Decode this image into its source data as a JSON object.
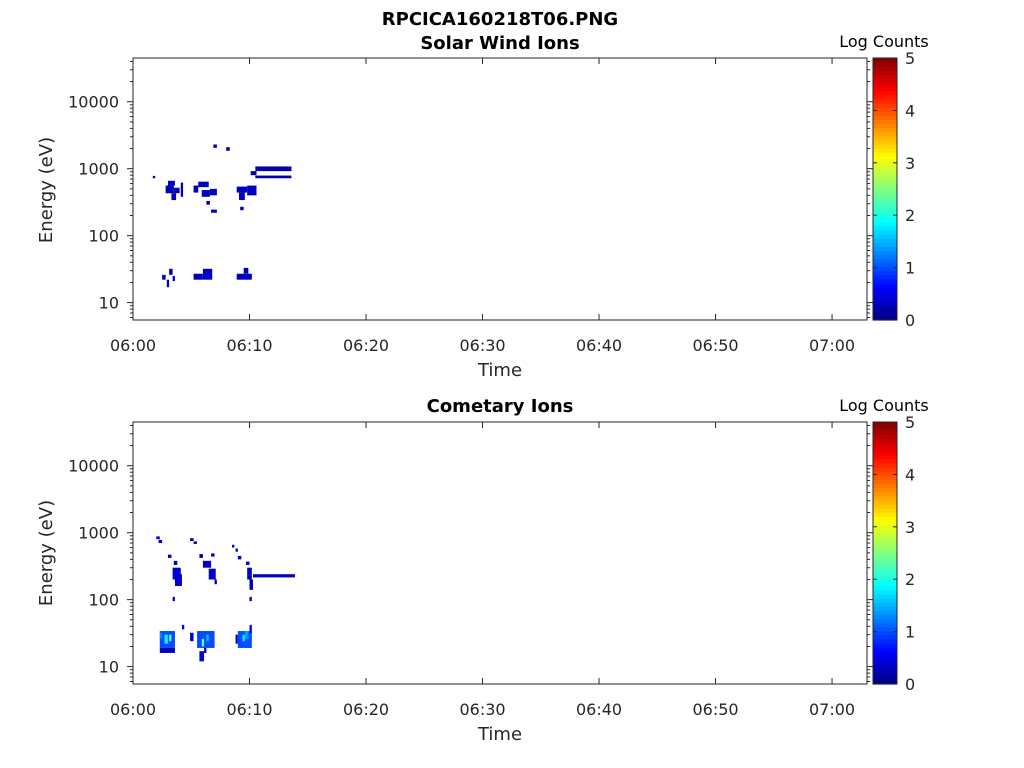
{
  "figure": {
    "title": "RPCICA160218T06.PNG"
  },
  "colorbar": {
    "label": "Log Counts",
    "range": [
      0,
      5
    ],
    "ticks": [
      0,
      1,
      2,
      3,
      4,
      5
    ],
    "colormap": "jet"
  },
  "chart_data": [
    {
      "type": "heatmap",
      "title": "Solar Wind Ions",
      "xlabel": "Time",
      "ylabel": "Energy (eV)",
      "y_scale": "log",
      "ylim": [
        5.5,
        45000
      ],
      "xlim": [
        "06:00:00",
        "07:03:00"
      ],
      "x_ticks": [
        "06:00",
        "06:10",
        "06:20",
        "06:30",
        "06:40",
        "06:50",
        "07:00"
      ],
      "y_ticks": [
        10,
        100,
        1000,
        10000
      ],
      "y_tick_labels": [
        "10",
        "100",
        "1000",
        "10000"
      ],
      "cells": [
        {
          "t0": "06:01:42",
          "t1": "06:01:54",
          "e": [
            720,
            780
          ],
          "v": 0.2
        },
        {
          "t0": "06:02:48",
          "t1": "06:03:30",
          "e": [
            430,
            560
          ],
          "v": 0.3
        },
        {
          "t0": "06:03:00",
          "t1": "06:03:36",
          "e": [
            560,
            660
          ],
          "v": 0.3
        },
        {
          "t0": "06:03:18",
          "t1": "06:03:42",
          "e": [
            340,
            430
          ],
          "v": 0.3
        },
        {
          "t0": "06:03:30",
          "t1": "06:04:00",
          "e": [
            430,
            520
          ],
          "v": 0.3
        },
        {
          "t0": "06:04:06",
          "t1": "06:04:18",
          "e": [
            380,
            620
          ],
          "v": 0.3
        },
        {
          "t0": "06:02:30",
          "t1": "06:02:48",
          "e": [
            22,
            26
          ],
          "v": 0.3
        },
        {
          "t0": "06:02:54",
          "t1": "06:03:06",
          "e": [
            17,
            22
          ],
          "v": 0.3
        },
        {
          "t0": "06:03:06",
          "t1": "06:03:24",
          "e": [
            26,
            32
          ],
          "v": 0.3
        },
        {
          "t0": "06:03:24",
          "t1": "06:03:36",
          "e": [
            21,
            25
          ],
          "v": 0.3
        },
        {
          "t0": "06:05:12",
          "t1": "06:05:36",
          "e": [
            440,
            560
          ],
          "v": 0.3
        },
        {
          "t0": "06:05:36",
          "t1": "06:06:30",
          "e": [
            530,
            640
          ],
          "v": 0.3
        },
        {
          "t0": "06:05:54",
          "t1": "06:06:36",
          "e": [
            380,
            480
          ],
          "v": 0.3
        },
        {
          "t0": "06:06:36",
          "t1": "06:07:12",
          "e": [
            400,
            500
          ],
          "v": 0.3
        },
        {
          "t0": "06:06:18",
          "t1": "06:06:36",
          "e": [
            290,
            330
          ],
          "v": 0.3
        },
        {
          "t0": "06:06:42",
          "t1": "06:07:12",
          "e": [
            220,
            245
          ],
          "v": 0.3
        },
        {
          "t0": "06:06:54",
          "t1": "06:07:12",
          "e": [
            2050,
            2300
          ],
          "v": 0.3
        },
        {
          "t0": "06:08:00",
          "t1": "06:08:18",
          "e": [
            1850,
            2100
          ],
          "v": 0.3
        },
        {
          "t0": "06:05:12",
          "t1": "06:06:00",
          "e": [
            22,
            27
          ],
          "v": 0.3
        },
        {
          "t0": "06:06:00",
          "t1": "06:06:48",
          "e": [
            22,
            32
          ],
          "v": 0.3
        },
        {
          "t0": "06:08:54",
          "t1": "06:09:48",
          "e": [
            440,
            540
          ],
          "v": 0.3
        },
        {
          "t0": "06:09:06",
          "t1": "06:09:36",
          "e": [
            340,
            440
          ],
          "v": 0.3
        },
        {
          "t0": "06:09:12",
          "t1": "06:09:30",
          "e": [
            240,
            270
          ],
          "v": 0.3
        },
        {
          "t0": "06:09:48",
          "t1": "06:10:36",
          "e": [
            400,
            560
          ],
          "v": 0.3
        },
        {
          "t0": "06:08:54",
          "t1": "06:10:12",
          "e": [
            22,
            27
          ],
          "v": 0.3
        },
        {
          "t0": "06:09:30",
          "t1": "06:09:54",
          "e": [
            27,
            33
          ],
          "v": 0.3
        },
        {
          "t0": "06:10:30",
          "t1": "06:13:36",
          "e": [
            920,
            1080
          ],
          "v": 0.2
        },
        {
          "t0": "06:10:30",
          "t1": "06:13:36",
          "e": [
            720,
            790
          ],
          "v": 0.2
        },
        {
          "t0": "06:10:06",
          "t1": "06:10:36",
          "e": [
            800,
            920
          ],
          "v": 0.2
        }
      ]
    },
    {
      "type": "heatmap",
      "title": "Cometary Ions",
      "xlabel": "Time",
      "ylabel": "Energy (eV)",
      "y_scale": "log",
      "ylim": [
        5.5,
        45000
      ],
      "xlim": [
        "06:00:00",
        "07:03:00"
      ],
      "x_ticks": [
        "06:00",
        "06:10",
        "06:20",
        "06:30",
        "06:40",
        "06:50",
        "07:00"
      ],
      "y_ticks": [
        10,
        100,
        1000,
        10000
      ],
      "y_tick_labels": [
        "10",
        "100",
        "1000",
        "10000"
      ],
      "cells": [
        {
          "t0": "06:02:00",
          "t1": "06:02:18",
          "e": [
            800,
            880
          ],
          "v": 0.3
        },
        {
          "t0": "06:02:12",
          "t1": "06:02:30",
          "e": [
            700,
            780
          ],
          "v": 0.3
        },
        {
          "t0": "06:03:00",
          "t1": "06:03:18",
          "e": [
            420,
            470
          ],
          "v": 0.3
        },
        {
          "t0": "06:03:30",
          "t1": "06:03:48",
          "e": [
            330,
            380
          ],
          "v": 0.3
        },
        {
          "t0": "06:03:24",
          "t1": "06:04:06",
          "e": [
            200,
            300
          ],
          "v": 0.4
        },
        {
          "t0": "06:03:36",
          "t1": "06:04:12",
          "e": [
            160,
            240
          ],
          "v": 0.4
        },
        {
          "t0": "06:03:24",
          "t1": "06:03:36",
          "e": [
            95,
            110
          ],
          "v": 0.3
        },
        {
          "t0": "06:04:12",
          "t1": "06:04:24",
          "e": [
            36,
            42
          ],
          "v": 0.6
        },
        {
          "t0": "06:02:18",
          "t1": "06:03:36",
          "e": [
            19,
            34
          ],
          "v": 1.0
        },
        {
          "t0": "06:02:18",
          "t1": "06:02:30",
          "e": [
            26,
            32
          ],
          "v": 1.3
        },
        {
          "t0": "06:02:42",
          "t1": "06:03:00",
          "e": [
            22,
            30
          ],
          "v": 1.8
        },
        {
          "t0": "06:03:06",
          "t1": "06:03:18",
          "e": [
            24,
            30
          ],
          "v": 2.2
        },
        {
          "t0": "06:02:18",
          "t1": "06:03:36",
          "e": [
            16,
            19
          ],
          "v": 0.3
        },
        {
          "t0": "06:04:54",
          "t1": "06:05:12",
          "e": [
            750,
            830
          ],
          "v": 0.3
        },
        {
          "t0": "06:05:12",
          "t1": "06:05:30",
          "e": [
            680,
            740
          ],
          "v": 0.3
        },
        {
          "t0": "06:05:42",
          "t1": "06:06:00",
          "e": [
            420,
            480
          ],
          "v": 0.3
        },
        {
          "t0": "06:06:00",
          "t1": "06:06:42",
          "e": [
            300,
            380
          ],
          "v": 0.4
        },
        {
          "t0": "06:06:30",
          "t1": "06:07:06",
          "e": [
            200,
            290
          ],
          "v": 0.4
        },
        {
          "t0": "06:06:42",
          "t1": "06:07:00",
          "e": [
            440,
            490
          ],
          "v": 0.3
        },
        {
          "t0": "06:07:00",
          "t1": "06:07:12",
          "e": [
            170,
            200
          ],
          "v": 0.3
        },
        {
          "t0": "06:04:54",
          "t1": "06:05:12",
          "e": [
            24,
            32
          ],
          "v": 0.3
        },
        {
          "t0": "06:05:30",
          "t1": "06:07:00",
          "e": [
            19,
            34
          ],
          "v": 1.0
        },
        {
          "t0": "06:05:54",
          "t1": "06:06:06",
          "e": [
            20,
            26
          ],
          "v": 2.3
        },
        {
          "t0": "06:06:18",
          "t1": "06:06:30",
          "e": [
            24,
            30
          ],
          "v": 1.6
        },
        {
          "t0": "06:05:42",
          "t1": "06:06:06",
          "e": [
            12,
            17
          ],
          "v": 0.4
        },
        {
          "t0": "06:06:06",
          "t1": "06:06:18",
          "e": [
            16,
            19
          ],
          "v": 0.3
        },
        {
          "t0": "06:08:30",
          "t1": "06:08:42",
          "e": [
            600,
            660
          ],
          "v": 0.3
        },
        {
          "t0": "06:08:48",
          "t1": "06:09:00",
          "e": [
            520,
            580
          ],
          "v": 0.3
        },
        {
          "t0": "06:09:00",
          "t1": "06:09:18",
          "e": [
            400,
            450
          ],
          "v": 0.3
        },
        {
          "t0": "06:09:42",
          "t1": "06:10:00",
          "e": [
            330,
            370
          ],
          "v": 0.3
        },
        {
          "t0": "06:09:48",
          "t1": "06:10:12",
          "e": [
            200,
            300
          ],
          "v": 0.4
        },
        {
          "t0": "06:10:00",
          "t1": "06:10:18",
          "e": [
            140,
            200
          ],
          "v": 0.3
        },
        {
          "t0": "06:10:00",
          "t1": "06:10:12",
          "e": [
            95,
            110
          ],
          "v": 0.3
        },
        {
          "t0": "06:10:18",
          "t1": "06:13:54",
          "e": [
            215,
            240
          ],
          "v": 0.3
        },
        {
          "t0": "06:08:48",
          "t1": "06:09:00",
          "e": [
            22,
            30
          ],
          "v": 0.3
        },
        {
          "t0": "06:09:00",
          "t1": "06:10:12",
          "e": [
            19,
            34
          ],
          "v": 1.0
        },
        {
          "t0": "06:09:24",
          "t1": "06:09:36",
          "e": [
            24,
            30
          ],
          "v": 1.9
        },
        {
          "t0": "06:09:36",
          "t1": "06:09:54",
          "e": [
            26,
            34
          ],
          "v": 1.4
        },
        {
          "t0": "06:10:00",
          "t1": "06:10:12",
          "e": [
            32,
            42
          ],
          "v": 0.5
        }
      ]
    }
  ]
}
